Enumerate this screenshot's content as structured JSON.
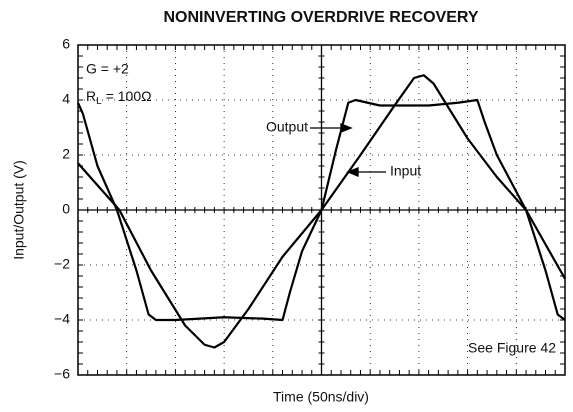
{
  "chart_data": {
    "type": "line",
    "title": "NONINVERTING OVERDRIVE RECOVERY",
    "xlabel": "Time (50ns/div)",
    "ylabel": "Input/Output (V)",
    "xlim": [
      0,
      10
    ],
    "xticks": [
      0,
      1,
      2,
      3,
      4,
      5,
      6,
      7,
      8,
      9,
      10
    ],
    "ylim": [
      -6,
      6
    ],
    "yticks": [
      {
        "value": -6,
        "label": "−6"
      },
      {
        "value": -4,
        "label": "−4"
      },
      {
        "value": -2,
        "label": "−2"
      },
      0,
      2,
      4,
      6
    ],
    "grid": true,
    "color": "#000000",
    "annotations": {
      "gain": "G = +2",
      "load": {
        "symbol": "R",
        "subscript": "L",
        "value": "= 100Ω"
      },
      "output": "Output",
      "input": "Input",
      "note": "See Figure 42"
    },
    "series": [
      {
        "name": "Input",
        "x": [
          0,
          0.85,
          1.5,
          2.2,
          2.6,
          2.8,
          3.0,
          3.5,
          4.2,
          5,
          5.8,
          6.5,
          6.9,
          7.1,
          7.3,
          8.0,
          8.6,
          9.2,
          10
        ],
        "values": [
          1.7,
          0,
          -2.2,
          -4.2,
          -4.9,
          -5.0,
          -4.8,
          -3.6,
          -1.7,
          0,
          2.0,
          3.8,
          4.8,
          4.9,
          4.6,
          2.6,
          1.2,
          0,
          -2.5
        ]
      },
      {
        "name": "Output",
        "x": [
          0,
          0.1,
          0.4,
          0.8,
          1.2,
          1.45,
          1.6,
          2.0,
          3.0,
          3.8,
          4.2,
          4.35,
          4.6,
          5,
          5.3,
          5.55,
          5.7,
          6.2,
          7.2,
          7.8,
          8.2,
          8.35,
          8.6,
          9.2,
          9.6,
          9.85,
          10
        ],
        "values": [
          3.9,
          3.5,
          1.6,
          0,
          -2.2,
          -3.8,
          -4.0,
          -4.0,
          -3.9,
          -3.95,
          -4.0,
          -3.0,
          -1.5,
          0,
          2.2,
          3.9,
          4.0,
          3.8,
          3.8,
          3.9,
          4.0,
          3.2,
          2.0,
          0,
          -2.2,
          -3.8,
          -4.0
        ]
      }
    ]
  }
}
